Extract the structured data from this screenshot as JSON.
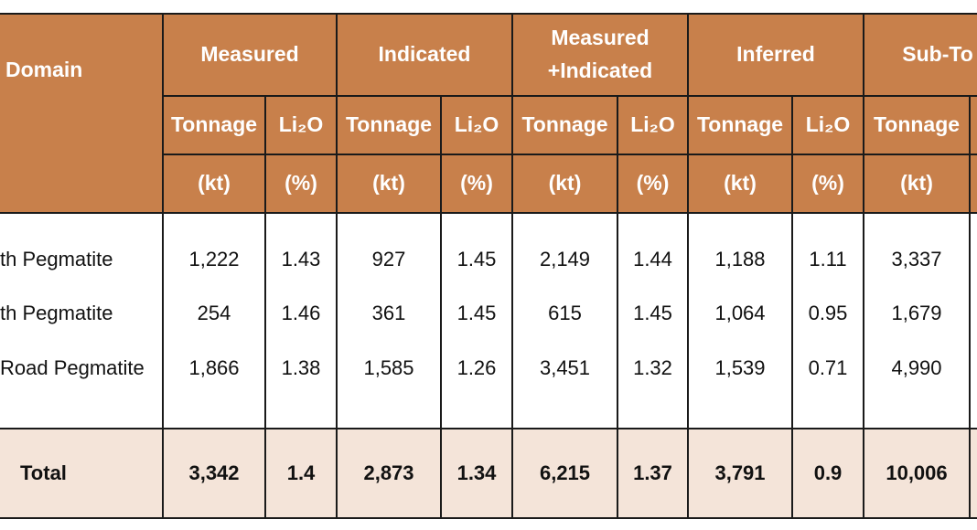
{
  "table": {
    "domain_header": "Domain",
    "groups": [
      "Measured",
      "Indicated",
      "Measured\n+Indicated",
      "Inferred",
      "Sub-To"
    ],
    "subheaders": [
      "Tonnage",
      "Li₂O",
      "Tonnage",
      "Li₂O",
      "Tonnage",
      "Li₂O",
      "Tonnage",
      "Li₂O",
      "Tonnage"
    ],
    "units": [
      "(kt)",
      "(%)",
      "(kt)",
      "(%)",
      "(kt)",
      "(%)",
      "(kt)",
      "(%)",
      "(kt)"
    ],
    "rows": [
      [
        "th Pegmatite",
        "1,222",
        "1.43",
        "927",
        "1.45",
        "2,149",
        "1.44",
        "1,188",
        "1.11",
        "3,337"
      ],
      [
        "th Pegmatite",
        "254",
        "1.46",
        "361",
        "1.45",
        "615",
        "1.45",
        "1,064",
        "0.95",
        "1,679"
      ],
      [
        "Road Pegmatite",
        "1,866",
        "1.38",
        "1,585",
        "1.26",
        "3,451",
        "1.32",
        "1,539",
        "0.71",
        "4,990"
      ]
    ],
    "total": [
      "Total",
      "3,342",
      "1.4",
      "2,873",
      "1.34",
      "6,215",
      "1.37",
      "3,791",
      "0.9",
      "10,006"
    ]
  }
}
